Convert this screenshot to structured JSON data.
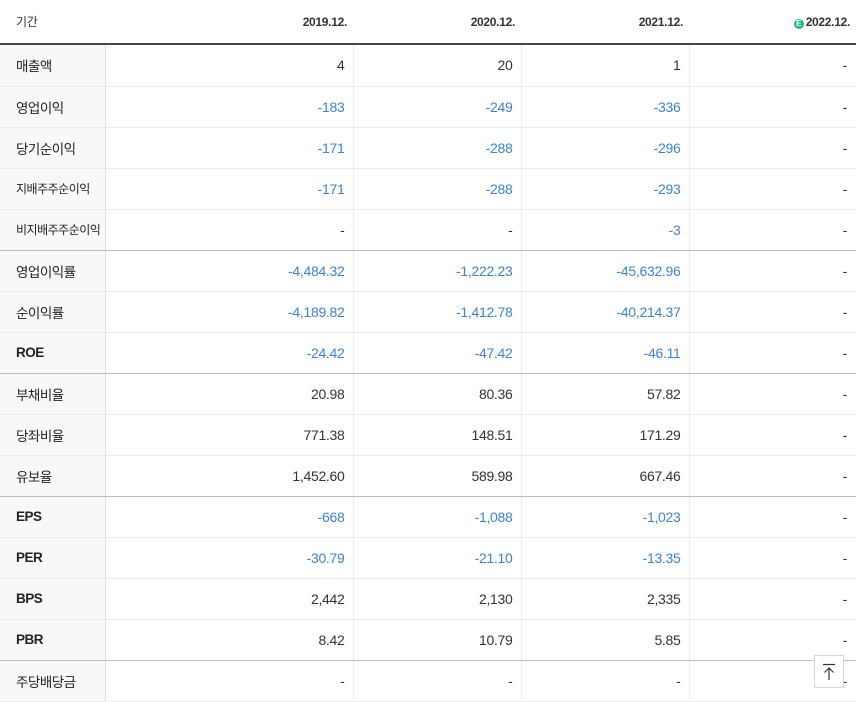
{
  "table": {
    "header_label": "기간",
    "periods": [
      "2019.12.",
      "2020.12.",
      "2021.12.",
      "2022.12."
    ],
    "estimate_badge": "E",
    "rows": [
      {
        "label": "매출액",
        "values": [
          "4",
          "20",
          "1",
          "-"
        ]
      },
      {
        "label": "영업이익",
        "values": [
          "-183",
          "-249",
          "-336",
          "-"
        ]
      },
      {
        "label": "당기순이익",
        "values": [
          "-171",
          "-288",
          "-296",
          "-"
        ]
      },
      {
        "label": "지배주주순이익",
        "values": [
          "-171",
          "-288",
          "-293",
          "-"
        ]
      },
      {
        "label": "비지배주주순이익",
        "values": [
          "-",
          "-",
          "-3",
          "-"
        ]
      },
      {
        "label": "영업이익률",
        "values": [
          "-4,484.32",
          "-1,222.23",
          "-45,632.96",
          "-"
        ]
      },
      {
        "label": "순이익률",
        "values": [
          "-4,189.82",
          "-1,412.78",
          "-40,214.37",
          "-"
        ]
      },
      {
        "label": "ROE",
        "values": [
          "-24.42",
          "-47.42",
          "-46.11",
          "-"
        ]
      },
      {
        "label": "부채비율",
        "values": [
          "20.98",
          "80.36",
          "57.82",
          "-"
        ]
      },
      {
        "label": "당좌비율",
        "values": [
          "771.38",
          "148.51",
          "171.29",
          "-"
        ]
      },
      {
        "label": "유보율",
        "values": [
          "1,452.60",
          "589.98",
          "667.46",
          "-"
        ]
      },
      {
        "label": "EPS",
        "values": [
          "-668",
          "-1,088",
          "-1,023",
          "-"
        ]
      },
      {
        "label": "PER",
        "values": [
          "-30.79",
          "-21.10",
          "-13.35",
          "-"
        ]
      },
      {
        "label": "BPS",
        "values": [
          "2,442",
          "2,130",
          "2,335",
          "-"
        ]
      },
      {
        "label": "PBR",
        "values": [
          "8.42",
          "10.79",
          "5.85",
          "-"
        ]
      },
      {
        "label": "주당배당금",
        "values": [
          "-",
          "-",
          "-",
          "-"
        ]
      }
    ]
  },
  "colors": {
    "negative": "#3b84d2",
    "estimate_badge": "#1fb98f"
  },
  "scroll_top_icon": "arrow-up-to-line-icon"
}
